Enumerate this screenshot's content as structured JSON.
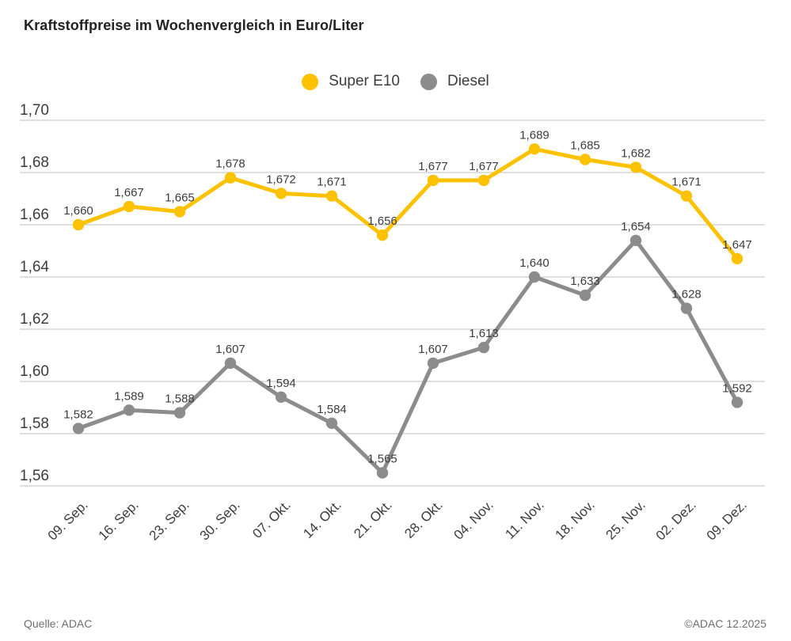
{
  "title": "Kraftstoffpreise im Wochenvergleich in Euro/Liter",
  "footer": {
    "source": "Quelle: ADAC",
    "copyright": "©ADAC 12.2025"
  },
  "chart_data": {
    "type": "line",
    "title": "Kraftstoffpreise im Wochenvergleich in Euro/Liter",
    "categories": [
      "09. Sep.",
      "16. Sep.",
      "23. Sep.",
      "30. Sep.",
      "07. Okt.",
      "14. Okt.",
      "21. Okt.",
      "28. Okt.",
      "04. Nov.",
      "11. Nov.",
      "18. Nov.",
      "25. Nov.",
      "02. Dez.",
      "09. Dez."
    ],
    "series": [
      {
        "name": "Super E10",
        "color": "#FCC200",
        "values": [
          1.66,
          1.667,
          1.665,
          1.678,
          1.672,
          1.671,
          1.656,
          1.677,
          1.677,
          1.689,
          1.685,
          1.682,
          1.671,
          1.647
        ]
      },
      {
        "name": "Diesel",
        "color": "#8C8C8C",
        "values": [
          1.582,
          1.589,
          1.588,
          1.607,
          1.594,
          1.584,
          1.565,
          1.607,
          1.613,
          1.64,
          1.633,
          1.654,
          1.628,
          1.592
        ]
      }
    ],
    "xlabel": "",
    "ylabel": "",
    "ylim": [
      1.56,
      1.7
    ],
    "ytick_step": 0.02,
    "ytick_labels": [
      "1,56",
      "1,58",
      "1,60",
      "1,62",
      "1,64",
      "1,66",
      "1,68",
      "1,70"
    ],
    "grid": true,
    "legend_position": "top-center",
    "decimal_separator": ",",
    "value_decimals": 3,
    "tick_decimals": 2,
    "colors": {
      "grid": "#cccccc",
      "axis_text": "#3c3c3c",
      "data_label_text": "#3c3c3c"
    }
  }
}
